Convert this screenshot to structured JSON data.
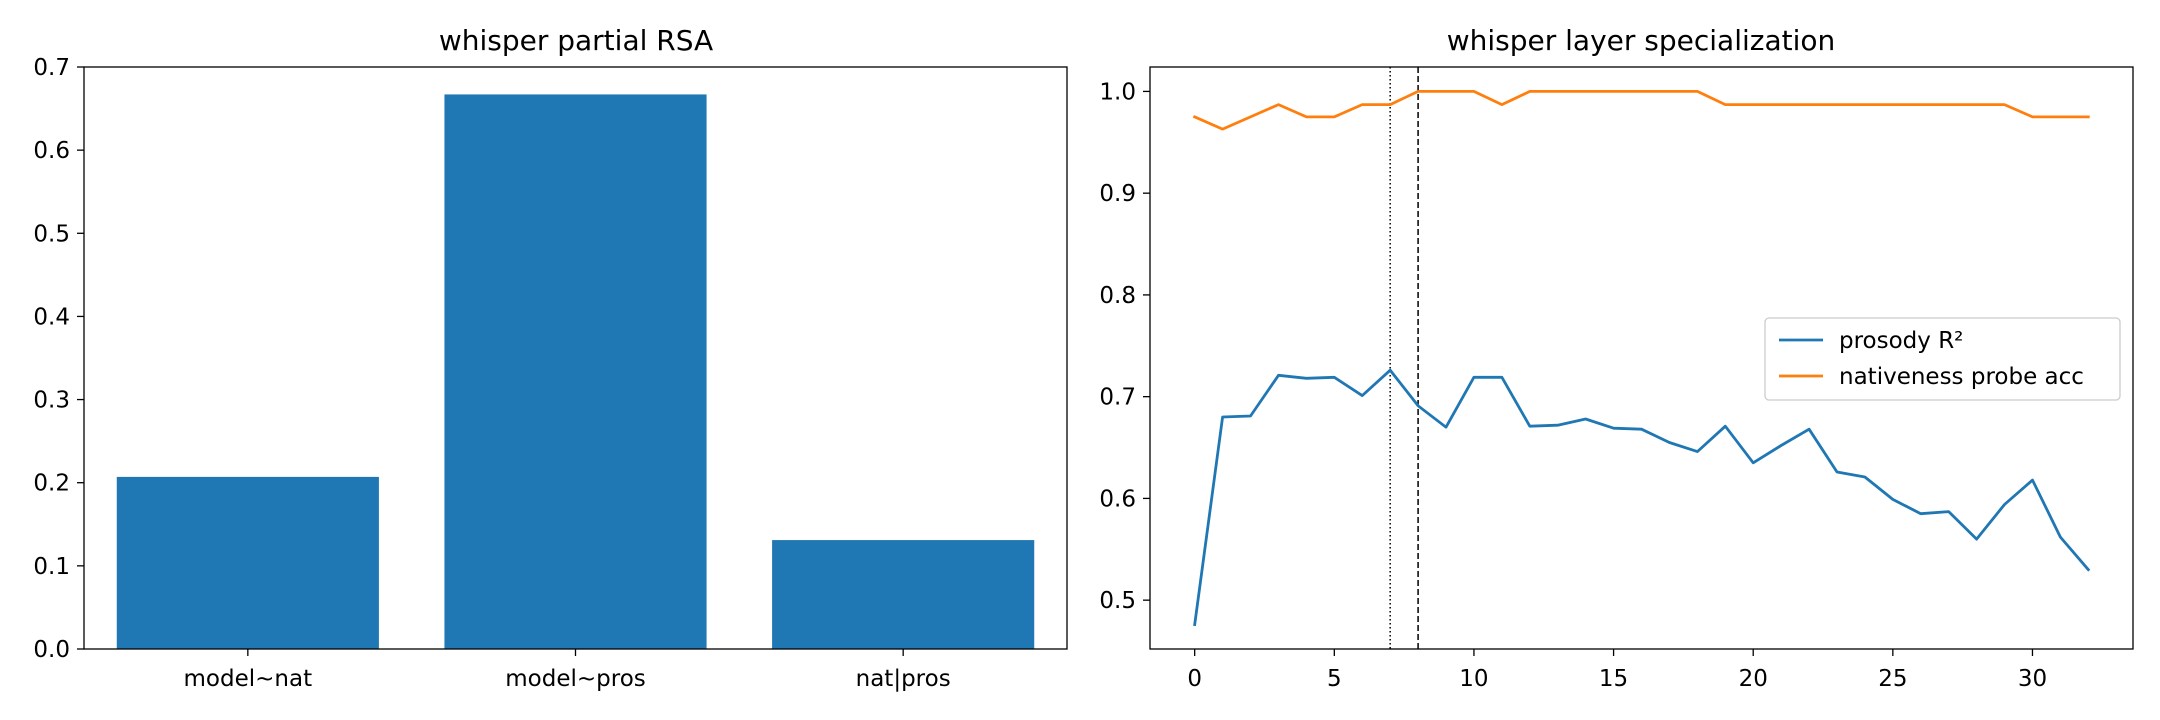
{
  "chart_data": [
    {
      "type": "bar",
      "title": "whisper partial RSA",
      "xlabel": "",
      "ylabel": "",
      "categories": [
        "model~nat",
        "model~pros",
        "nat|pros"
      ],
      "values": [
        0.207,
        0.667,
        0.131
      ],
      "ylim": [
        0,
        0.7
      ],
      "yticks": [
        0.0,
        0.1,
        0.2,
        0.3,
        0.4,
        0.5,
        0.6,
        0.7
      ],
      "ytick_labels": [
        "0.0",
        "0.1",
        "0.2",
        "0.3",
        "0.4",
        "0.5",
        "0.6",
        "0.7"
      ],
      "bar_color": "#1f77b4",
      "grid": false
    },
    {
      "type": "line",
      "title": "whisper layer specialization",
      "xlabel": "",
      "ylabel": "",
      "x": [
        0,
        1,
        2,
        3,
        4,
        5,
        6,
        7,
        8,
        9,
        10,
        11,
        12,
        13,
        14,
        15,
        16,
        17,
        18,
        19,
        20,
        21,
        22,
        23,
        24,
        25,
        26,
        27,
        28,
        29,
        30,
        31,
        32
      ],
      "series": [
        {
          "name": "prosody R²",
          "color": "#1f77b4",
          "values": [
            0.476,
            0.68,
            0.681,
            0.721,
            0.718,
            0.719,
            0.701,
            0.726,
            0.691,
            0.67,
            0.719,
            0.719,
            0.671,
            0.672,
            0.678,
            0.669,
            0.668,
            0.655,
            0.646,
            0.671,
            0.635,
            0.652,
            0.668,
            0.626,
            0.621,
            0.599,
            0.585,
            0.587,
            0.56,
            0.594,
            0.618,
            0.562,
            0.53
          ]
        },
        {
          "name": "nativeness probe acc",
          "color": "#ff7f0e",
          "values": [
            0.975,
            0.963,
            0.975,
            0.987,
            0.975,
            0.975,
            0.987,
            0.987,
            1.0,
            1.0,
            1.0,
            0.987,
            1.0,
            1.0,
            1.0,
            1.0,
            1.0,
            1.0,
            1.0,
            0.987,
            0.987,
            0.987,
            0.987,
            0.987,
            0.987,
            0.987,
            0.987,
            0.987,
            0.987,
            0.987,
            0.975,
            0.975,
            0.975
          ]
        }
      ],
      "xlim": [
        -1.6,
        33.6
      ],
      "ylim": [
        0.452,
        1.024
      ],
      "xticks": [
        0,
        5,
        10,
        15,
        20,
        25,
        30
      ],
      "xtick_labels": [
        "0",
        "5",
        "10",
        "15",
        "20",
        "25",
        "30"
      ],
      "yticks": [
        0.5,
        0.6,
        0.7,
        0.8,
        0.9,
        1.0
      ],
      "ytick_labels": [
        "0.5",
        "0.6",
        "0.7",
        "0.8",
        "0.9",
        "1.0"
      ],
      "vlines": [
        {
          "x": 7,
          "style": "dotted"
        },
        {
          "x": 8,
          "style": "dashed"
        }
      ],
      "legend_position": "center-right",
      "grid": false
    }
  ]
}
